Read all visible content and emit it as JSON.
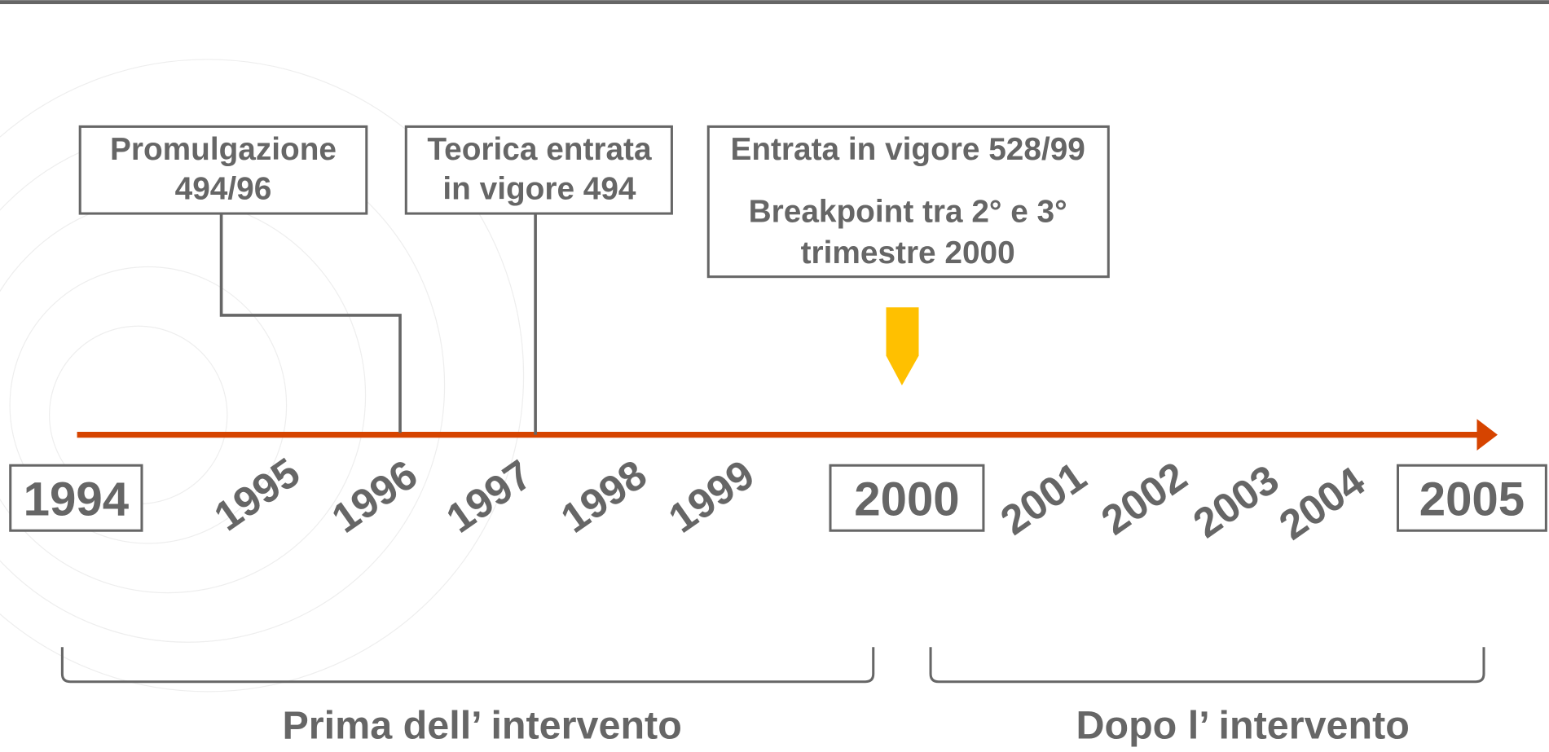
{
  "timeline": {
    "years": [
      {
        "label": "1994",
        "boxed": true
      },
      {
        "label": "1995",
        "boxed": false
      },
      {
        "label": "1996",
        "boxed": false
      },
      {
        "label": "1997",
        "boxed": false
      },
      {
        "label": "1998",
        "boxed": false
      },
      {
        "label": "1999",
        "boxed": false
      },
      {
        "label": "2000",
        "boxed": true
      },
      {
        "label": "2001",
        "boxed": false
      },
      {
        "label": "2002",
        "boxed": false
      },
      {
        "label": "2003",
        "boxed": false
      },
      {
        "label": "2004",
        "boxed": false
      },
      {
        "label": "2005",
        "boxed": true
      }
    ],
    "callouts": [
      {
        "lines": [
          "Promulgazione",
          "494/96"
        ]
      },
      {
        "lines": [
          "Teorica entrata",
          "in vigore 494"
        ]
      },
      {
        "lines": [
          "Entrata in vigore 528/99",
          "Breakpoint tra 2° e 3°",
          "trimestre 2000"
        ]
      }
    ],
    "periods": [
      {
        "label": "Prima dell’ intervento"
      },
      {
        "label": "Dopo l’ intervento"
      }
    ]
  }
}
